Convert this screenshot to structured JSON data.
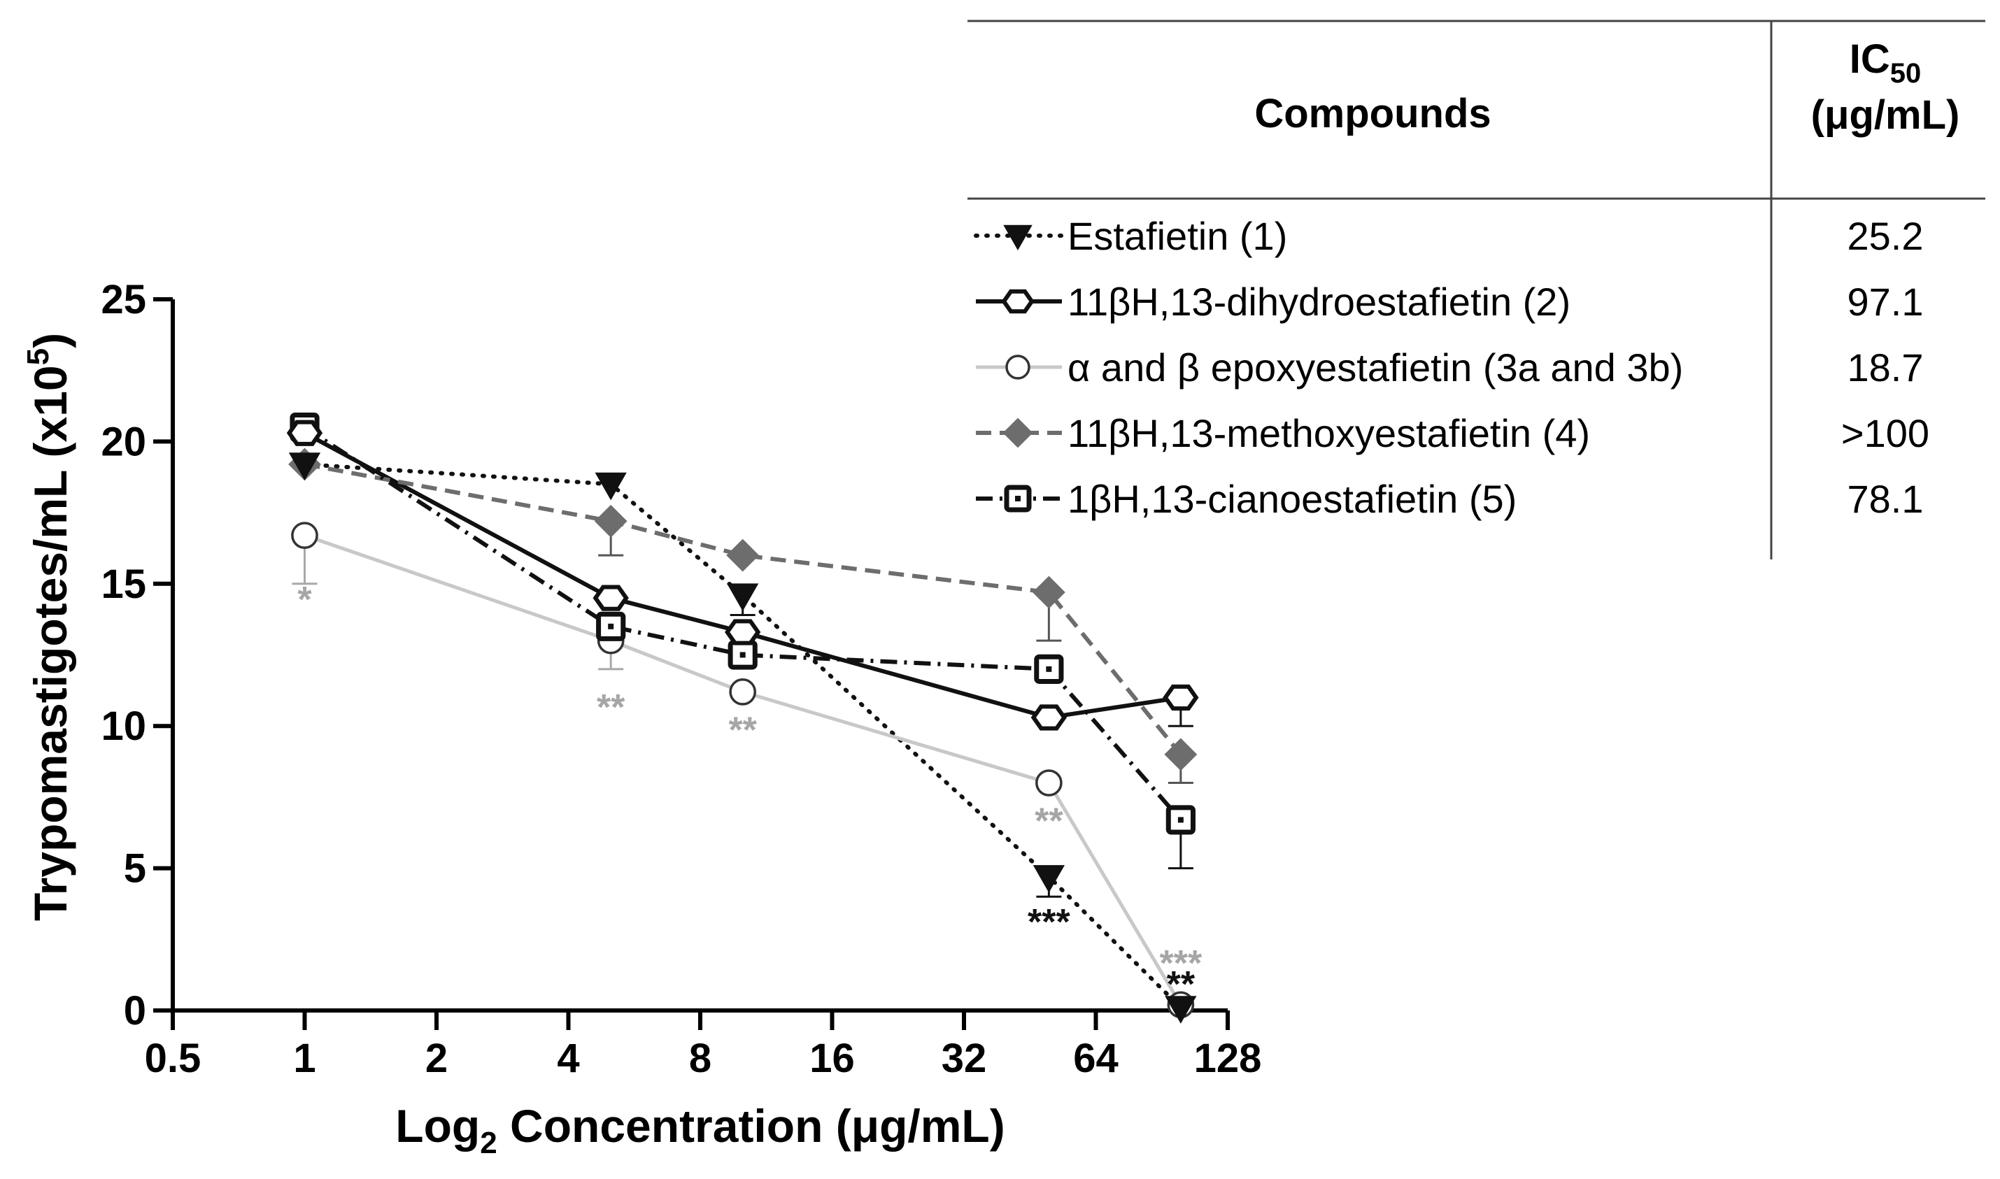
{
  "chart_data": {
    "type": "line",
    "xscale": "log2",
    "xlabel": {
      "prefix": "Log",
      "sub": "2",
      "suffix": " Concentration (μg/mL)"
    },
    "ylabel": {
      "main": "Trypomastigotes/mL (x10",
      "sup": "5",
      "end": ")"
    },
    "xlim": [
      0.5,
      128
    ],
    "ylim": [
      0,
      25
    ],
    "x_ticks": [
      0.5,
      1,
      2,
      4,
      8,
      16,
      32,
      64,
      128
    ],
    "x_tick_labels": [
      "0.5",
      "1",
      "2",
      "4",
      "8",
      "16",
      "32",
      "64",
      "128"
    ],
    "y_ticks": [
      0,
      5,
      10,
      15,
      20,
      25
    ],
    "y_tick_labels": [
      "0",
      "5",
      "10",
      "15",
      "20",
      "25"
    ],
    "x": [
      1,
      5,
      10,
      50,
      100
    ],
    "series": [
      {
        "name": "Estafietin (1)",
        "ic50": "25.2",
        "marker": "triangle-down",
        "line": "dotted",
        "color": "#111111",
        "values": [
          19.2,
          18.5,
          14.6,
          4.7,
          0.1
        ],
        "errors": [
          0,
          0,
          0.7,
          0.7,
          0
        ],
        "significance": [
          "",
          "",
          "",
          "***",
          "**"
        ],
        "sig_color": "#111111"
      },
      {
        "name": "11βH,13-dihydroestafietin (2)",
        "ic50": "97.1",
        "marker": "hexagon-open",
        "line": "solid",
        "color": "#111111",
        "values": [
          20.3,
          14.5,
          13.3,
          10.3,
          11.0
        ],
        "errors": [
          0,
          0,
          0,
          0,
          1.0
        ],
        "significance": [
          "",
          "",
          "",
          "",
          ""
        ],
        "sig_color": "#111111"
      },
      {
        "name": "α and β epoxyestafietin (3a and 3b)",
        "ic50": "18.7",
        "marker": "circle-open",
        "line": "solid",
        "color": "#c8c8c8",
        "values": [
          16.7,
          13.0,
          11.2,
          8.0,
          0.2
        ],
        "errors": [
          1.7,
          1.0,
          0,
          0,
          0
        ],
        "significance": [
          "*",
          "**",
          "**",
          "**",
          "***"
        ],
        "sig_color": "#a6a6a6"
      },
      {
        "name": "11βH,13-methoxyestafietin (4)",
        "ic50": ">100",
        "marker": "diamond-filled",
        "line": "dashed",
        "color": "#6d6d6d",
        "values": [
          19.2,
          17.2,
          16.0,
          14.7,
          9.0
        ],
        "errors": [
          0,
          1.2,
          0,
          1.7,
          1.0
        ],
        "significance": [
          "",
          "",
          "",
          "",
          ""
        ],
        "sig_color": "#6d6d6d"
      },
      {
        "name": "1βH,13-cianoestafietin (5)",
        "ic50": "78.1",
        "marker": "square-open-dot",
        "line": "dashdot",
        "color": "#111111",
        "values": [
          20.5,
          13.5,
          12.5,
          12.0,
          6.7
        ],
        "errors": [
          0,
          0,
          0,
          0,
          1.7
        ],
        "significance": [
          "",
          "",
          "",
          "",
          ""
        ],
        "sig_color": "#111111"
      }
    ],
    "legend": {
      "placement": "top-right",
      "header_compounds": "Compounds",
      "header_ic50": {
        "main": "IC",
        "sub": "50",
        "unit": "(μg/mL)"
      }
    }
  }
}
